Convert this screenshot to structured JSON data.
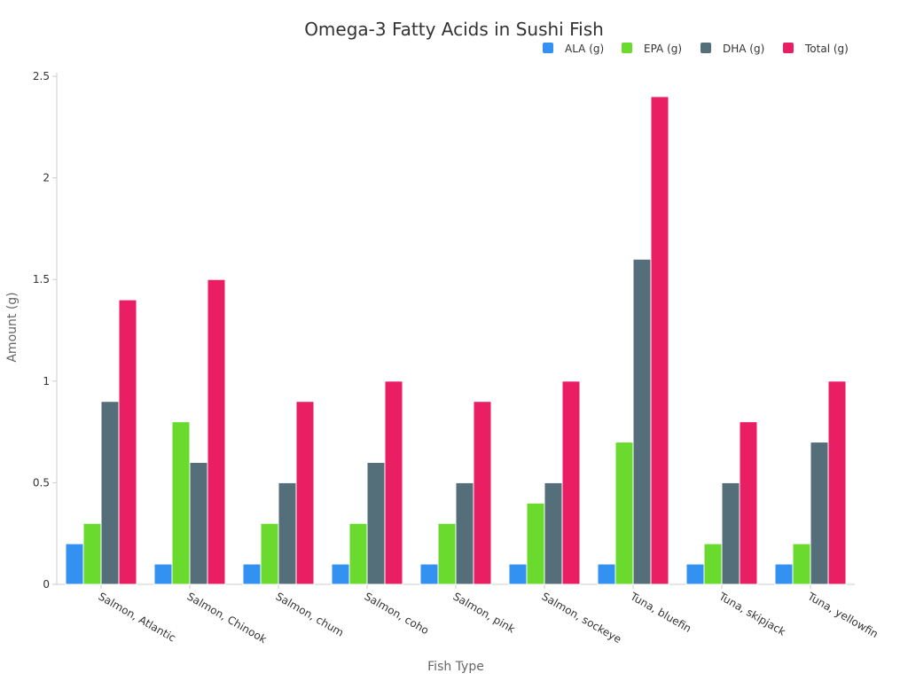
{
  "chart_data": {
    "type": "bar",
    "title": "Omega-3 Fatty Acids in Sushi Fish",
    "xlabel": "Fish Type",
    "ylabel": "Amount (g)",
    "ylim": [
      0,
      2.5
    ],
    "yticks": [
      "0",
      "0.5",
      "1",
      "1.5",
      "2",
      "2.5"
    ],
    "grid": false,
    "legend_position": "top-right",
    "categories": [
      "Salmon, Atlantic",
      "Salmon, Chinook",
      "Salmon, chum",
      "Salmon, coho",
      "Salmon, pink",
      "Salmon, sockeye",
      "Tuna, bluefin",
      "Tuna, skipjack",
      "Tuna, yellowfin"
    ],
    "series": [
      {
        "name": "ALA (g)",
        "color": "#3391f1",
        "values": [
          0.2,
          0.1,
          0.1,
          0.1,
          0.1,
          0.1,
          0.1,
          0.1,
          0.1
        ]
      },
      {
        "name": "EPA (g)",
        "color": "#6adb2e",
        "values": [
          0.3,
          0.8,
          0.3,
          0.3,
          0.3,
          0.4,
          0.7,
          0.2,
          0.2
        ]
      },
      {
        "name": "DHA (g)",
        "color": "#546e7a",
        "values": [
          0.9,
          0.6,
          0.5,
          0.6,
          0.5,
          0.5,
          1.6,
          0.5,
          0.7
        ]
      },
      {
        "name": "Total (g)",
        "color": "#e91e63",
        "values": [
          1.4,
          1.5,
          0.9,
          1.0,
          0.9,
          1.0,
          2.4,
          0.8,
          1.0
        ]
      }
    ]
  }
}
